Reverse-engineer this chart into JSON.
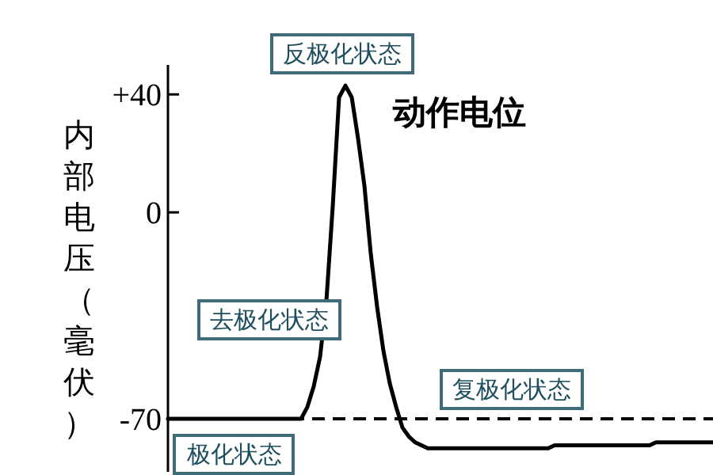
{
  "chart_data": {
    "type": "line",
    "ylabel": "内部电压（毫伏）",
    "categories": [
      null,
      null,
      null,
      null,
      null,
      null,
      null,
      null,
      null,
      null,
      null,
      null,
      null,
      null,
      null,
      null,
      null,
      null,
      null,
      null,
      null,
      null,
      null,
      null,
      null,
      null,
      null,
      null,
      null,
      null,
      null,
      null,
      null,
      null,
      null,
      null,
      null,
      null,
      null,
      null,
      null,
      null,
      null,
      null,
      null,
      null,
      null,
      null,
      null,
      null,
      null,
      null,
      null,
      null,
      null,
      null,
      null,
      null,
      null,
      null,
      null,
      null,
      null,
      null,
      null,
      null,
      null,
      null,
      null,
      null,
      null,
      null,
      null,
      null,
      null,
      null,
      null,
      null,
      null,
      null,
      null,
      null,
      null,
      null,
      null,
      null,
      null
    ],
    "series": [
      {
        "color": "#000000",
        "values": [
          -70,
          -70,
          -70,
          -70,
          -70,
          -70,
          -70,
          -70,
          -70,
          -70,
          -70,
          -70,
          -70,
          -70,
          -70,
          -70,
          -70,
          -70,
          -70,
          -70,
          -70,
          -70,
          -66,
          -59,
          -49,
          -30,
          2,
          39,
          43,
          39,
          25,
          9,
          -14,
          -32,
          -47,
          -58,
          -66,
          -73,
          -76,
          -78,
          -79,
          -80,
          -80,
          -80,
          -80,
          -80,
          -80,
          -80,
          -80,
          -80,
          -80,
          -80,
          -80,
          -80,
          -80,
          -80,
          -80,
          -80,
          -80,
          -80,
          -80,
          -79,
          -79,
          -79,
          -79,
          -79,
          -79,
          -79,
          -79,
          -79,
          -79,
          -79,
          -79,
          -79,
          -79,
          -79,
          -79,
          -78,
          -78,
          -78,
          -78,
          -78,
          -78,
          -78,
          -78,
          -78,
          -78
        ]
      }
    ],
    "ylim": [
      -88,
      50
    ],
    "yticks": [
      {
        "value": 40,
        "label": "+40"
      },
      0,
      -70
    ],
    "tick_labels": "y",
    "grid": false,
    "marker": "none",
    "line_style": "solid",
    "ref_lines": [
      {
        "axis": "y",
        "value": -70,
        "color": "#000000",
        "line_style": "dashed"
      }
    ],
    "annotations": [
      "反极化状态",
      "动作电位",
      "去极化状态",
      "复极化状态",
      "极化状态"
    ]
  }
}
